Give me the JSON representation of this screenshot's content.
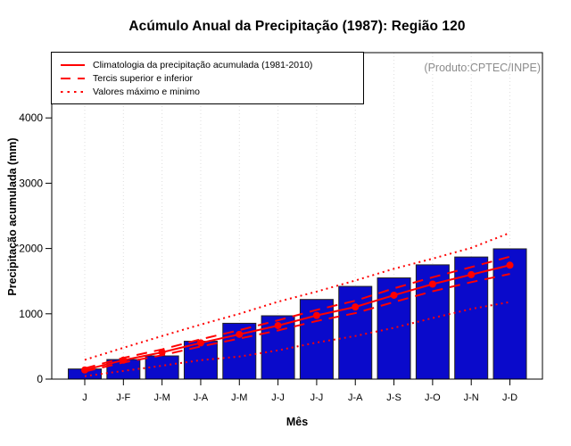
{
  "title": "Acúmulo Anual da Precipitação (1987): Região 120",
  "watermark": "(Produto:CPTEC/INPE)",
  "legend": {
    "items": [
      {
        "style": "solid",
        "label": "Climatologia da precipitação acumulada (1981-2010)"
      },
      {
        "style": "dashed",
        "label": "Tercis superior e inferior"
      },
      {
        "style": "dotted",
        "label": "Valores máximo e minimo"
      }
    ]
  },
  "chart_data": {
    "type": "bar",
    "title": "Acúmulo Anual da Precipitação (1987): Região 120",
    "xlabel": "Mês",
    "ylabel": "Precipitação acumulada (mm)",
    "categories": [
      "J",
      "J-F",
      "J-M",
      "J-A",
      "J-M",
      "J-J",
      "J-J",
      "J-A",
      "J-S",
      "J-O",
      "J-N",
      "J-D"
    ],
    "ylim": [
      0,
      5000
    ],
    "yticks": [
      0,
      1000,
      2000,
      3000,
      4000
    ],
    "grid": "vertical dotted gridlines at each month",
    "legend_position": "top-left",
    "bar_values": [
      155,
      300,
      355,
      580,
      855,
      970,
      1220,
      1420,
      1550,
      1750,
      1870,
      1995
    ],
    "series": [
      {
        "name": "Climatologia da precipitação acumulada (1981-2010)",
        "style": "solid",
        "marker": true,
        "values": [
          140,
          290,
          410,
          555,
          685,
          820,
          975,
          1105,
          1285,
          1455,
          1600,
          1745
        ]
      },
      {
        "name": "Tercil superior",
        "style": "dashed",
        "marker": false,
        "values": [
          165,
          325,
          455,
          610,
          750,
          900,
          1060,
          1200,
          1390,
          1560,
          1715,
          1875
        ]
      },
      {
        "name": "Tercil inferior",
        "style": "dashed",
        "marker": false,
        "values": [
          115,
          255,
          365,
          500,
          620,
          745,
          890,
          1010,
          1180,
          1345,
          1485,
          1610
        ]
      },
      {
        "name": "Valor máximo",
        "style": "dotted",
        "marker": false,
        "values": [
          295,
          480,
          660,
          835,
          1000,
          1185,
          1340,
          1510,
          1690,
          1845,
          2010,
          2240
        ]
      },
      {
        "name": "Valor mínimo",
        "style": "dotted",
        "marker": false,
        "values": [
          45,
          125,
          205,
          290,
          345,
          440,
          560,
          660,
          785,
          935,
          1075,
          1180
        ]
      }
    ],
    "colors": {
      "bar_fill": "#0A0ACB",
      "bar_border": "#222222",
      "line": "#FF0000",
      "grid": "#DEDEDE",
      "axis": "#000000",
      "watermark": "#8C8C8C"
    }
  }
}
